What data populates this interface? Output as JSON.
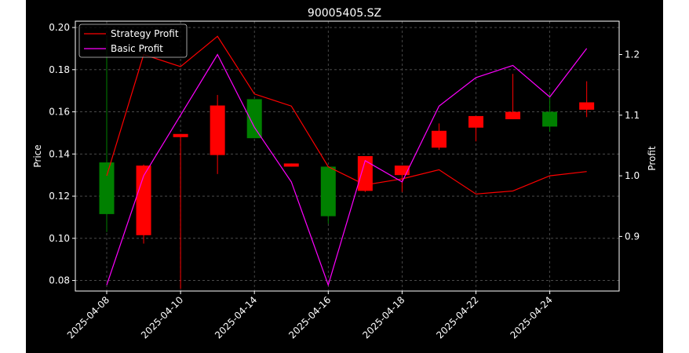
{
  "chart_data": {
    "type": "candlestick",
    "title": "90005405.SZ",
    "ylabel_left": "Price",
    "ylabel_right": "Profit",
    "grid": true,
    "legend_placement": "top-left",
    "ylim_left": [
      0.075,
      0.203
    ],
    "ylim_right": [
      0.81,
      1.255
    ],
    "colors": {
      "up": "#008000",
      "down": "#ff0000",
      "strategy": "#ff0000",
      "basic": "#ff00ff",
      "background": "#000000",
      "text": "#ffffff",
      "grid": "#555555"
    },
    "x_ticks": [
      "2025-04-08",
      "2025-04-10",
      "2025-04-14",
      "2025-04-16",
      "2025-04-18",
      "2025-04-22",
      "2025-04-24"
    ],
    "yticks_left": [
      "0.08",
      "0.10",
      "0.12",
      "0.14",
      "0.16",
      "0.18",
      "0.20"
    ],
    "yticks_right": [
      "0.9",
      "1.0",
      "1.1",
      "1.2"
    ],
    "candles": [
      {
        "date": "2025-04-08",
        "open": 0.1115,
        "close": 0.136,
        "high": 0.195,
        "low": 0.103
      },
      {
        "date": "2025-04-09",
        "open": 0.1345,
        "close": 0.1015,
        "high": 0.135,
        "low": 0.0975
      },
      {
        "date": "2025-04-10",
        "open": 0.1495,
        "close": 0.148,
        "high": 0.1495,
        "low": 0.076
      },
      {
        "date": "2025-04-11",
        "open": 0.163,
        "close": 0.1395,
        "high": 0.168,
        "low": 0.1305
      },
      {
        "date": "2025-04-14",
        "open": 0.1475,
        "close": 0.166,
        "high": 0.166,
        "low": 0.1475
      },
      {
        "date": "2025-04-15",
        "open": 0.1355,
        "close": 0.134,
        "high": 0.1355,
        "low": 0.134
      },
      {
        "date": "2025-04-16",
        "open": 0.1105,
        "close": 0.134,
        "high": 0.134,
        "low": 0.107
      },
      {
        "date": "2025-04-17",
        "open": 0.139,
        "close": 0.1225,
        "high": 0.139,
        "low": 0.122
      },
      {
        "date": "2025-04-18",
        "open": 0.1345,
        "close": 0.13,
        "high": 0.1345,
        "low": 0.122
      },
      {
        "date": "2025-04-21",
        "open": 0.151,
        "close": 0.143,
        "high": 0.1545,
        "low": 0.142
      },
      {
        "date": "2025-04-22",
        "open": 0.158,
        "close": 0.1525,
        "high": 0.158,
        "low": 0.146
      },
      {
        "date": "2025-04-23",
        "open": 0.16,
        "close": 0.1565,
        "high": 0.178,
        "low": 0.1565
      },
      {
        "date": "2025-04-24",
        "open": 0.153,
        "close": 0.16,
        "high": 0.169,
        "low": 0.1505
      },
      {
        "date": "2025-04-25",
        "open": 0.1645,
        "close": 0.161,
        "high": 0.1745,
        "low": 0.1575
      }
    ],
    "series": [
      {
        "name": "Strategy Profit",
        "color": "#ff0000",
        "values": [
          1.0,
          1.2,
          1.18,
          1.23,
          1.135,
          1.115,
          1.015,
          0.985,
          0.995,
          1.01,
          0.97,
          0.975,
          1.0,
          1.007
        ]
      },
      {
        "name": "Basic Profit",
        "color": "#ff00ff",
        "values": [
          0.82,
          1.0,
          1.1,
          1.2,
          1.08,
          0.99,
          0.82,
          1.025,
          0.99,
          1.115,
          1.162,
          1.182,
          1.13,
          1.21
        ]
      }
    ]
  }
}
